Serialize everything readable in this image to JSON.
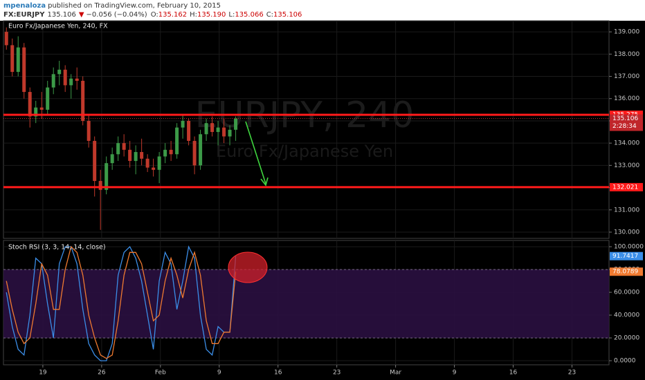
{
  "header": {
    "author": "mpenaloza",
    "published": "published on TradingView.com, February 10, 2015",
    "symbol": "FX:EURJPY",
    "price": "135.106",
    "change_arrow": "▼",
    "change": "−0.056 (−0.04%)",
    "open_label": "O:",
    "open": "135.162",
    "high_label": "H:",
    "high": "135.190",
    "low_label": "L:",
    "low": "135.066",
    "close_label": "C:",
    "close": "135.106"
  },
  "chart_data": [
    {
      "type": "candlestick",
      "title": "Euro Fx/Japanese Yen, 240, FX",
      "watermark_symbol": "EURJPY, 240",
      "watermark_name": "Euro Fx/Japanese Yen",
      "x": [
        0.5,
        1.5,
        2.5,
        3.5,
        4.5,
        5.5,
        6.5,
        7.5,
        8.5,
        9.5,
        10.5,
        11.5,
        12.5,
        13.5,
        14.5,
        15.5,
        16.5,
        17.5,
        18.5,
        19.5,
        20.5,
        21.5,
        22.5,
        23.5,
        24.5,
        25.5,
        26.5,
        27.5,
        28.5,
        29.5,
        30.5,
        31.5,
        32.5,
        33.5,
        34.5,
        35.5,
        36.5,
        37.5,
        38.5,
        39.5
      ],
      "open": [
        139.0,
        138.4,
        137.2,
        138.3,
        136.3,
        135.2,
        135.6,
        135.5,
        136.5,
        137.1,
        137.3,
        136.6,
        136.9,
        136.8,
        135.0,
        134.1,
        132.3,
        131.9,
        133.1,
        133.5,
        134.0,
        133.7,
        133.2,
        133.6,
        133.3,
        132.9,
        132.8,
        133.4,
        133.7,
        133.5,
        134.7,
        135.0,
        134.1,
        133.0,
        134.4,
        134.9,
        134.5,
        134.7,
        134.3,
        134.6
      ],
      "high": [
        139.2,
        138.7,
        138.8,
        138.5,
        136.5,
        135.9,
        136.3,
        136.8,
        137.4,
        137.7,
        137.5,
        137.1,
        137.4,
        137.0,
        135.3,
        134.3,
        132.8,
        133.4,
        133.8,
        134.3,
        134.4,
        134.1,
        133.9,
        134.2,
        133.5,
        133.3,
        133.6,
        134.0,
        134.1,
        134.9,
        135.3,
        135.1,
        134.3,
        134.6,
        135.1,
        135.2,
        135.0,
        135.1,
        134.8,
        135.2
      ],
      "low": [
        138.2,
        137.0,
        137.0,
        136.0,
        134.7,
        134.9,
        135.1,
        135.3,
        136.2,
        136.6,
        136.3,
        136.0,
        136.4,
        134.8,
        133.8,
        131.6,
        130.1,
        131.7,
        132.8,
        133.2,
        133.4,
        132.9,
        132.6,
        133.0,
        132.7,
        132.5,
        132.2,
        133.1,
        133.2,
        133.3,
        134.2,
        133.9,
        132.6,
        132.8,
        134.1,
        134.3,
        133.9,
        134.0,
        133.9,
        134.1
      ],
      "close": [
        138.4,
        137.2,
        138.3,
        136.3,
        135.2,
        135.6,
        135.5,
        136.5,
        137.1,
        137.3,
        136.6,
        136.9,
        136.8,
        135.0,
        134.1,
        132.3,
        131.9,
        133.1,
        133.5,
        134.0,
        133.7,
        133.2,
        133.6,
        133.3,
        132.9,
        132.8,
        133.4,
        133.7,
        133.5,
        134.7,
        135.0,
        134.1,
        133.0,
        134.4,
        134.9,
        134.5,
        134.7,
        134.3,
        134.6,
        135.106
      ],
      "up_color": "#3c9a48",
      "down_color": "#c0392b",
      "xlim": [
        0,
        103
      ],
      "ylim": [
        129.72,
        139.5
      ],
      "yticks": [
        {
          "value": 130,
          "label": "130.000"
        },
        {
          "value": 131,
          "label": "131.000"
        },
        {
          "value": 132,
          "label": "132.000"
        },
        {
          "value": 133,
          "label": "133.000"
        },
        {
          "value": 134,
          "label": "134.000"
        },
        {
          "value": 135,
          "label": "135.000"
        },
        {
          "value": 136,
          "label": "136.000"
        },
        {
          "value": 137,
          "label": "137.000"
        },
        {
          "value": 138,
          "label": "138.000"
        },
        {
          "value": 139,
          "label": "139.000"
        }
      ],
      "grid": true,
      "hlines": [
        135.275,
        132.021
      ],
      "hline_color": "#ff1a1a",
      "last": 135.106,
      "countdown": "2:28:34"
    },
    {
      "type": "line",
      "title": "Stoch RSI (3, 3, 14, 14, close)",
      "x": [
        0.5,
        1.5,
        2.5,
        3.5,
        4.5,
        5.5,
        6.5,
        7.5,
        8.5,
        9.5,
        10.5,
        11.5,
        12.5,
        13.5,
        14.5,
        15.5,
        16.5,
        17.5,
        18.5,
        19.5,
        20.5,
        21.5,
        22.5,
        23.5,
        24.5,
        25.5,
        26.5,
        27.5,
        28.5,
        29.5,
        30.5,
        31.5,
        32.5,
        33.5,
        34.5,
        35.5,
        36.5,
        37.5,
        38.5,
        39.5
      ],
      "series": [
        {
          "name": "K",
          "color": "#3b8ee8",
          "values": [
            60,
            30,
            10,
            5,
            40,
            90,
            85,
            50,
            20,
            85,
            100,
            100,
            85,
            45,
            15,
            5,
            0,
            0,
            15,
            75,
            95,
            100,
            90,
            70,
            40,
            10,
            70,
            95,
            85,
            45,
            70,
            100,
            90,
            40,
            10,
            5,
            30,
            25,
            25,
            91.7417
          ]
        },
        {
          "name": "D",
          "color": "#f07a30",
          "values": [
            70,
            45,
            25,
            15,
            20,
            50,
            85,
            75,
            45,
            45,
            80,
            100,
            95,
            75,
            40,
            20,
            5,
            2,
            5,
            35,
            75,
            95,
            95,
            85,
            60,
            35,
            40,
            70,
            90,
            75,
            55,
            80,
            95,
            75,
            35,
            15,
            15,
            25,
            25,
            78.0789
          ]
        }
      ],
      "band": [
        20,
        80
      ],
      "band_color": "#2a1040",
      "xlim": [
        0,
        103
      ],
      "ylim": [
        -3.6,
        105.5
      ],
      "yticks": [
        {
          "value": 0,
          "label": "0.0000"
        },
        {
          "value": 20,
          "label": "20.0000"
        },
        {
          "value": 40,
          "label": "40.0000"
        },
        {
          "value": 60,
          "label": "60.0000"
        },
        {
          "value": 80,
          "label": "80.0000"
        },
        {
          "value": 100,
          "label": "100.0000"
        }
      ],
      "xticks": [
        {
          "value": 6.7,
          "label": "19"
        },
        {
          "value": 16.7,
          "label": "26"
        },
        {
          "value": 26.7,
          "label": "Feb"
        },
        {
          "value": 36.7,
          "label": "9"
        },
        {
          "value": 46.7,
          "label": "16"
        },
        {
          "value": 56.7,
          "label": "23"
        },
        {
          "value": 66.7,
          "label": "Mar"
        },
        {
          "value": 76.7,
          "label": "9"
        },
        {
          "value": 86.7,
          "label": "16"
        },
        {
          "value": 96.7,
          "label": "23"
        }
      ],
      "grid": true
    }
  ]
}
